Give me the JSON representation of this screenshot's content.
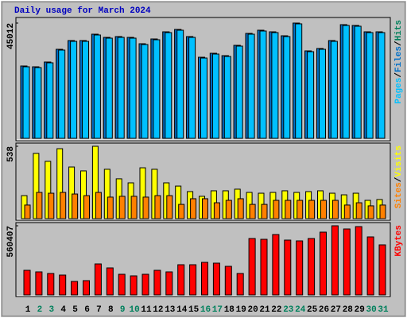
{
  "chart_data": [
    {
      "type": "bar",
      "title": "Daily usage for March 2024",
      "ylim": [
        0,
        45012
      ],
      "yticks": [
        45012
      ],
      "legend_separator": "/",
      "series": [
        {
          "name": "Hits",
          "color": "#00805c",
          "values": [
            28248,
            27938,
            29800,
            34767,
            38182,
            38182,
            40665,
            39423,
            39734,
            39423,
            36940,
            38803,
            41596,
            42528,
            39734,
            31663,
            33215,
            32284,
            36319,
            40976,
            42217,
            41596,
            40044,
            45012,
            34146,
            35078,
            38182,
            44391,
            44080,
            41596,
            41596
          ]
        },
        {
          "name": "Files",
          "color": "#0070c8",
          "values": [
            28248,
            27938,
            29800,
            34767,
            38182,
            38182,
            40665,
            39423,
            39734,
            39423,
            36940,
            38803,
            41596,
            42528,
            39734,
            31663,
            33215,
            32284,
            36319,
            40976,
            42217,
            41596,
            40044,
            45012,
            34146,
            35078,
            38182,
            44391,
            44080,
            41596,
            41596
          ]
        },
        {
          "name": "Pages",
          "color": "#00c0ff",
          "values": [
            27938,
            27627,
            29490,
            34457,
            37872,
            37872,
            40355,
            39113,
            39423,
            39113,
            36630,
            38493,
            41286,
            42217,
            39423,
            31353,
            32905,
            31974,
            36009,
            40665,
            41906,
            41286,
            39734,
            44701,
            33836,
            34767,
            37872,
            44080,
            43770,
            41286,
            41286
          ]
        }
      ]
    },
    {
      "type": "bar",
      "ylim": [
        0,
        538
      ],
      "yticks": [
        538
      ],
      "legend_separator": "/",
      "series": [
        {
          "name": "Visits",
          "color": "#ffff00",
          "values": [
            171,
            485,
            426,
            520,
            384,
            355,
            538,
            367,
            296,
            266,
            378,
            367,
            266,
            242,
            201,
            166,
            207,
            207,
            219,
            195,
            189,
            195,
            207,
            195,
            201,
            207,
            189,
            177,
            189,
            136,
            142
          ]
        },
        {
          "name": "Sites",
          "color": "#ff8000",
          "values": [
            101,
            195,
            189,
            195,
            183,
            171,
            195,
            160,
            166,
            166,
            160,
            171,
            171,
            106,
            148,
            148,
            118,
            136,
            148,
            106,
            106,
            136,
            136,
            136,
            136,
            136,
            136,
            101,
            118,
            95,
            101
          ]
        }
      ]
    },
    {
      "type": "bar",
      "ylim": [
        0,
        560407
      ],
      "yticks": [
        560407
      ],
      "categories": [
        "1",
        "2",
        "3",
        "4",
        "5",
        "6",
        "7",
        "8",
        "9",
        "10",
        "11",
        "12",
        "13",
        "14",
        "15",
        "16",
        "17",
        "18",
        "19",
        "20",
        "21",
        "22",
        "23",
        "24",
        "25",
        "26",
        "27",
        "28",
        "29",
        "30",
        "31"
      ],
      "weekend_days": [
        2,
        3,
        9,
        10,
        16,
        17,
        23,
        24,
        30,
        31
      ],
      "weekend_color": "#00805c",
      "weekday_color": "#000000",
      "series": [
        {
          "name": "KBytes",
          "color": "#ff0000",
          "values": [
            199671,
            186789,
            173907,
            161025,
            109497,
            115938,
            251199,
            218994,
            167466,
            154584,
            167466,
            199671,
            186789,
            244758,
            244758,
            264081,
            257640,
            231876,
            173907,
            457311,
            450870,
            489516,
            444429,
            437988,
            457311,
            508839,
            560407,
            534603,
            553926,
            470193,
            405783
          ]
        }
      ]
    }
  ]
}
